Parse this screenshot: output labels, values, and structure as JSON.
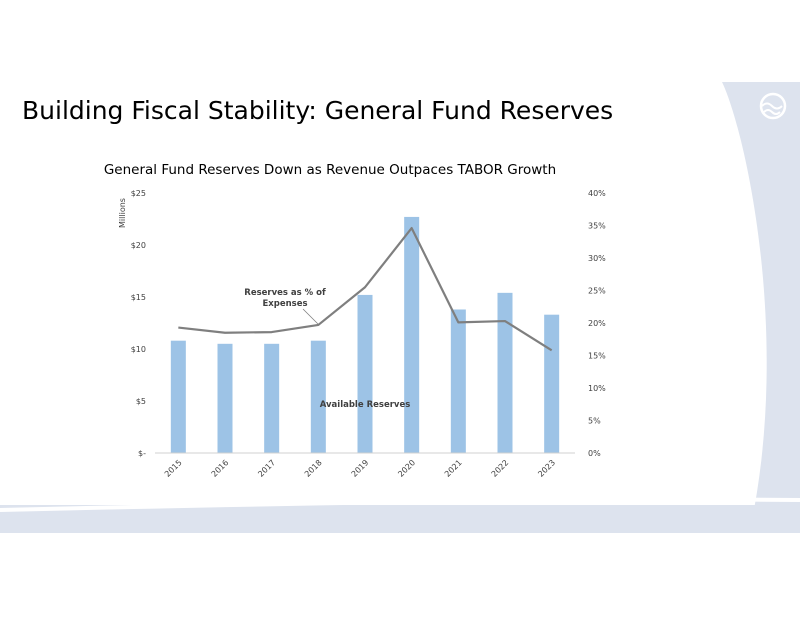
{
  "slide": {
    "title": "Building Fiscal Stability: General Fund Reserves",
    "logo_icon": "wave-circle-icon"
  },
  "colors": {
    "bar": "#9dc3e6",
    "line": "#7f7f7f",
    "decoration": "#dde3ee"
  },
  "chart_data": {
    "type": "bar",
    "title": "General Fund Reserves Down as Revenue Outpaces TABOR Growth",
    "categories": [
      "2015",
      "2016",
      "2017",
      "2018",
      "2019",
      "2020",
      "2021",
      "2022",
      "2023"
    ],
    "series": [
      {
        "name": "Available Reserves",
        "type": "bar",
        "axis": "left",
        "values": [
          10.8,
          10.5,
          10.5,
          10.8,
          15.2,
          22.7,
          13.8,
          15.4,
          13.3
        ]
      },
      {
        "name": "Reserves as % of Expenses",
        "type": "line",
        "axis": "right",
        "values": [
          19.3,
          18.5,
          18.6,
          19.7,
          25.5,
          34.6,
          20.1,
          20.3,
          15.8
        ]
      }
    ],
    "ylabel": "Millions",
    "ylim": [
      0,
      25
    ],
    "yticks": [
      "$-",
      "$5",
      "$10",
      "$15",
      "$20",
      "$25"
    ],
    "ylim_right": [
      0,
      40
    ],
    "yticks_right": [
      "0%",
      "5%",
      "10%",
      "15%",
      "20%",
      "25%",
      "30%",
      "35%",
      "40%"
    ],
    "annotations": {
      "line_label_1": "Reserves as % of",
      "line_label_2": "Expenses",
      "bar_label": "Available Reserves"
    },
    "grid": false,
    "legend": "none"
  }
}
